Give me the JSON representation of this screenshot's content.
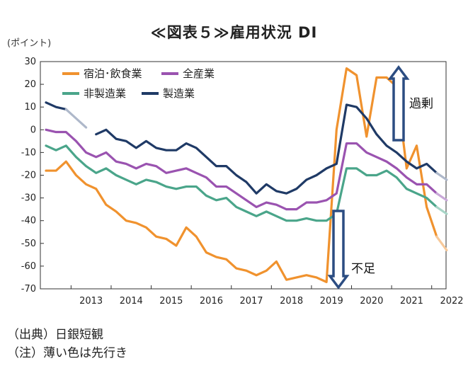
{
  "title": "≪図表５≫雇用状況 DI",
  "unit_label": "(ポイント)",
  "source": "（出典）日銀短観",
  "note": "（注）薄い色は先行き",
  "chart_data": {
    "type": "line",
    "title": "≪図表５≫雇用状況 DI",
    "ylabel": "(ポイント)",
    "ylim": [
      -70,
      30
    ],
    "yticks": [
      30,
      20,
      10,
      0,
      -10,
      -20,
      -30,
      -40,
      -50,
      -60,
      -70
    ],
    "x_start": "2012Q2",
    "x_tick_labels": [
      "2013",
      "2014",
      "2015",
      "2016",
      "2017",
      "2018",
      "2019",
      "2020",
      "2021",
      "2022"
    ],
    "grid": false,
    "legend_position": "top-left",
    "series": [
      {
        "name": "宿泊･飲食業",
        "color": "#f0922e",
        "forecast_color": "#f7c99a",
        "values": [
          -18,
          -18,
          -14,
          -20,
          -24,
          -26,
          -33,
          -36,
          -40,
          -41,
          -43,
          -47,
          -48,
          -51,
          -43,
          -47,
          -54,
          -56,
          -57,
          -61,
          -62,
          -64,
          -62,
          -58,
          -66,
          -65,
          -64,
          -65,
          -67,
          0,
          27,
          24,
          -3,
          23,
          23,
          19,
          -17,
          -7,
          -34,
          -47
        ],
        "forecast_value": -53
      },
      {
        "name": "全産業",
        "color": "#9a53b0",
        "forecast_color": "#c9a8d8",
        "values": [
          0,
          -1,
          -1,
          -5,
          -10,
          -12,
          -10,
          -14,
          -15,
          -17,
          -15,
          -16,
          -19,
          -18,
          -17,
          -19,
          -21,
          -25,
          -25,
          -28,
          -31,
          -34,
          -32,
          -33,
          -35,
          -35,
          -32,
          -32,
          -31,
          -28,
          -6,
          -6,
          -10,
          -12,
          -14,
          -17,
          -21,
          -24,
          -24,
          -28
        ],
        "forecast_value": -31
      },
      {
        "name": "非製造業",
        "color": "#4aa58a",
        "forecast_color": "#a8d5c7",
        "values": [
          -7,
          -9,
          -7,
          -12,
          -16,
          -19,
          -17,
          -20,
          -22,
          -24,
          -22,
          -23,
          -25,
          -26,
          -25,
          -25,
          -29,
          -31,
          -30,
          -34,
          -36,
          -38,
          -36,
          -38,
          -40,
          -40,
          -39,
          -40,
          -40,
          -37,
          -17,
          -17,
          -20,
          -20,
          -18,
          -21,
          -26,
          -28,
          -30,
          -34
        ],
        "forecast_value": -37
      },
      {
        "name": "製造業",
        "color": "#1f3a66",
        "forecast_color": "#aeb8ca",
        "values": [
          12,
          10,
          9,
          null,
          null,
          -2,
          0,
          -4,
          -5,
          -8,
          -5,
          -8,
          -9,
          -9,
          -6,
          -8,
          -12,
          -16,
          -16,
          -20,
          -23,
          -28,
          -24,
          -27,
          -28,
          -26,
          -22,
          -20,
          -17,
          -15,
          11,
          10,
          5,
          -2,
          -7,
          -10,
          -14,
          -17,
          -15,
          -19
        ],
        "forecast_value": -22,
        "forecast_segment": [
          [
            2,
            9
          ],
          [
            3,
            5
          ],
          [
            4,
            1
          ]
        ]
      }
    ],
    "annotations": [
      {
        "text": "過剰",
        "arrow": "up"
      },
      {
        "text": "不足",
        "arrow": "down"
      }
    ]
  }
}
